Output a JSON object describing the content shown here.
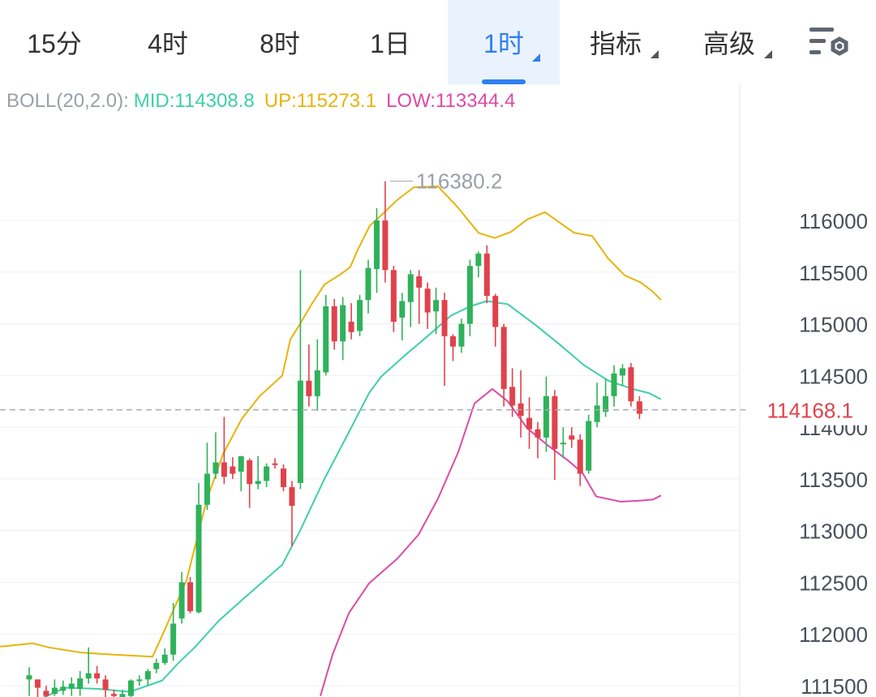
{
  "tabs": [
    {
      "label": "15分",
      "active": false,
      "dropdown": false
    },
    {
      "label": "4时",
      "active": false,
      "dropdown": false
    },
    {
      "label": "8时",
      "active": false,
      "dropdown": false
    },
    {
      "label": "1日",
      "active": false,
      "dropdown": false
    },
    {
      "label": "1时",
      "active": true,
      "dropdown": true
    },
    {
      "label": "指标",
      "active": false,
      "dropdown": true
    },
    {
      "label": "高级",
      "active": false,
      "dropdown": true
    }
  ],
  "indicator": {
    "name": "BOLL(20,2.0):",
    "mid": "MID:114308.8",
    "up": "UP:115273.1",
    "low": "LOW:113344.4"
  },
  "colors": {
    "up_candle": "#2fb25a",
    "down_candle": "#e0424b",
    "mid": "#3fcfa8",
    "upper": "#e6b40a",
    "lower": "#dd4aa6",
    "accent": "#2f7ff0"
  },
  "icons": {
    "settings": "chart-settings-icon"
  },
  "chart_data": {
    "type": "candlestick",
    "y_ticks": [
      "116000",
      "115500",
      "115000",
      "114500",
      "114000",
      "113500",
      "113000",
      "112500",
      "112000",
      "111500"
    ],
    "ylim": [
      111400,
      116800
    ],
    "max_label": "116380.2",
    "current_price": 114168.1,
    "current_price_label": "114168.1",
    "candles": [
      [
        111560,
        111600,
        111400,
        111680
      ],
      [
        111560,
        111480,
        111300,
        111560
      ],
      [
        111450,
        111400,
        111350,
        111500
      ],
      [
        111420,
        111480,
        111400,
        111560
      ],
      [
        111450,
        111490,
        111410,
        111550
      ],
      [
        111470,
        111520,
        111400,
        111580
      ],
      [
        111470,
        111570,
        111400,
        111640
      ],
      [
        111570,
        111620,
        111520,
        111870
      ],
      [
        111620,
        111570,
        111520,
        111690
      ],
      [
        111560,
        111460,
        111300,
        111600
      ],
      [
        111420,
        111400,
        111340,
        111460
      ],
      [
        111380,
        111420,
        111320,
        111460
      ],
      [
        111400,
        111550,
        111340,
        111560
      ],
      [
        111550,
        111560,
        111500,
        111600
      ],
      [
        111560,
        111640,
        111500,
        111660
      ],
      [
        111660,
        111720,
        111620,
        111760
      ],
      [
        111720,
        111800,
        111700,
        111860
      ],
      [
        111800,
        112100,
        111740,
        112300
      ],
      [
        112150,
        112500,
        112100,
        112600
      ],
      [
        112500,
        112220,
        112200,
        112550
      ],
      [
        112210,
        113250,
        112200,
        113460
      ],
      [
        113250,
        113550,
        113200,
        113850
      ],
      [
        113550,
        113660,
        113500,
        113950
      ],
      [
        113660,
        113520,
        113450,
        114100
      ],
      [
        113620,
        113550,
        113500,
        113710
      ],
      [
        113570,
        113720,
        113380,
        113720
      ],
      [
        113680,
        113450,
        113220,
        113700
      ],
      [
        113450,
        113480,
        113400,
        113720
      ],
      [
        113480,
        113620,
        113420,
        113650
      ],
      [
        113650,
        113640,
        113600,
        113700
      ],
      [
        113600,
        113420,
        113380,
        113640
      ],
      [
        113420,
        113240,
        112850,
        113480
      ],
      [
        113460,
        114450,
        113400,
        115520
      ],
      [
        114450,
        114300,
        114200,
        114800
      ],
      [
        114300,
        114550,
        114160,
        114850
      ],
      [
        114530,
        115170,
        114500,
        115280
      ],
      [
        115170,
        114830,
        114750,
        115240
      ],
      [
        114830,
        115180,
        114650,
        115260
      ],
      [
        115020,
        114920,
        114850,
        115200
      ],
      [
        114930,
        115230,
        114880,
        115280
      ],
      [
        115230,
        115540,
        115100,
        115620
      ],
      [
        115530,
        116000,
        115300,
        116120
      ],
      [
        116000,
        115520,
        115400,
        116380
      ],
      [
        115520,
        115020,
        114920,
        115560
      ],
      [
        115060,
        115220,
        114840,
        115300
      ],
      [
        115210,
        115480,
        114970,
        115520
      ],
      [
        115460,
        115350,
        115000,
        115520
      ],
      [
        115340,
        115110,
        114950,
        115400
      ],
      [
        115120,
        115230,
        114900,
        115350
      ],
      [
        115230,
        114880,
        114400,
        115300
      ],
      [
        114880,
        114780,
        114640,
        114900
      ],
      [
        114780,
        115000,
        114720,
        115050
      ],
      [
        115000,
        115560,
        114880,
        115620
      ],
      [
        115560,
        115680,
        115450,
        115700
      ],
      [
        115680,
        115270,
        115200,
        115760
      ],
      [
        115270,
        114970,
        114780,
        115290
      ],
      [
        114970,
        114370,
        114200,
        115000
      ],
      [
        114390,
        114210,
        114100,
        114570
      ],
      [
        114230,
        114110,
        113900,
        114550
      ],
      [
        114090,
        113980,
        113790,
        114290
      ],
      [
        113980,
        113900,
        113700,
        114050
      ],
      [
        113900,
        114300,
        113760,
        114490
      ],
      [
        114300,
        113790,
        113490,
        114360
      ],
      [
        113850,
        113850,
        113700,
        114000
      ],
      [
        113920,
        113880,
        113800,
        114000
      ],
      [
        113880,
        113550,
        113430,
        113930
      ],
      [
        113580,
        114060,
        113550,
        114120
      ],
      [
        114050,
        114210,
        114000,
        114430
      ],
      [
        114150,
        114300,
        114100,
        114470
      ],
      [
        114300,
        114520,
        114200,
        114600
      ],
      [
        114500,
        114570,
        114400,
        114610
      ],
      [
        114580,
        114250,
        114200,
        114620
      ],
      [
        114250,
        114130,
        114080,
        114300
      ]
    ],
    "upper_band": [
      [
        -4,
        111880
      ],
      [
        4,
        111880
      ],
      [
        40,
        111910
      ],
      [
        60,
        111870
      ],
      [
        100,
        111820
      ],
      [
        140,
        111800
      ],
      [
        188,
        111780
      ],
      [
        198,
        111950
      ],
      [
        230,
        112520
      ],
      [
        255,
        113300
      ],
      [
        275,
        113740
      ],
      [
        298,
        114080
      ],
      [
        320,
        114300
      ],
      [
        348,
        114500
      ],
      [
        358,
        114850
      ],
      [
        370,
        115000
      ],
      [
        385,
        115200
      ],
      [
        400,
        115380
      ],
      [
        420,
        115480
      ],
      [
        432,
        115550
      ],
      [
        440,
        115700
      ],
      [
        456,
        115950
      ],
      [
        470,
        116050
      ],
      [
        490,
        116200
      ],
      [
        510,
        116320
      ],
      [
        540,
        116330
      ],
      [
        564,
        116130
      ],
      [
        590,
        115880
      ],
      [
        610,
        115830
      ],
      [
        630,
        115890
      ],
      [
        650,
        116010
      ],
      [
        672,
        116080
      ],
      [
        688,
        115990
      ],
      [
        708,
        115880
      ],
      [
        730,
        115850
      ],
      [
        750,
        115630
      ],
      [
        770,
        115470
      ],
      [
        790,
        115400
      ],
      [
        805,
        115310
      ],
      [
        815,
        115230
      ]
    ],
    "mid_band": [
      [
        -4,
        111200
      ],
      [
        30,
        111300
      ],
      [
        80,
        111480
      ],
      [
        120,
        111470
      ],
      [
        160,
        111440
      ],
      [
        200,
        111550
      ],
      [
        220,
        111720
      ],
      [
        240,
        111870
      ],
      [
        270,
        112130
      ],
      [
        300,
        112340
      ],
      [
        348,
        112670
      ],
      [
        370,
        113000
      ],
      [
        400,
        113500
      ],
      [
        430,
        113950
      ],
      [
        455,
        114330
      ],
      [
        470,
        114490
      ],
      [
        500,
        114700
      ],
      [
        530,
        114900
      ],
      [
        556,
        115080
      ],
      [
        580,
        115170
      ],
      [
        600,
        115220
      ],
      [
        626,
        115190
      ],
      [
        660,
        114990
      ],
      [
        690,
        114800
      ],
      [
        720,
        114600
      ],
      [
        750,
        114450
      ],
      [
        780,
        114370
      ],
      [
        800,
        114330
      ],
      [
        815,
        114270
      ]
    ],
    "lower_band": [
      [
        395,
        111400
      ],
      [
        410,
        111800
      ],
      [
        430,
        112200
      ],
      [
        455,
        112490
      ],
      [
        490,
        112730
      ],
      [
        516,
        112960
      ],
      [
        540,
        113310
      ],
      [
        565,
        113760
      ],
      [
        585,
        114230
      ],
      [
        607,
        114370
      ],
      [
        626,
        114250
      ],
      [
        650,
        113990
      ],
      [
        676,
        113820
      ],
      [
        700,
        113680
      ],
      [
        718,
        113560
      ],
      [
        735,
        113330
      ],
      [
        765,
        113280
      ],
      [
        790,
        113290
      ],
      [
        805,
        113300
      ],
      [
        815,
        113340
      ]
    ],
    "band_x_unit": "px-from-left"
  }
}
